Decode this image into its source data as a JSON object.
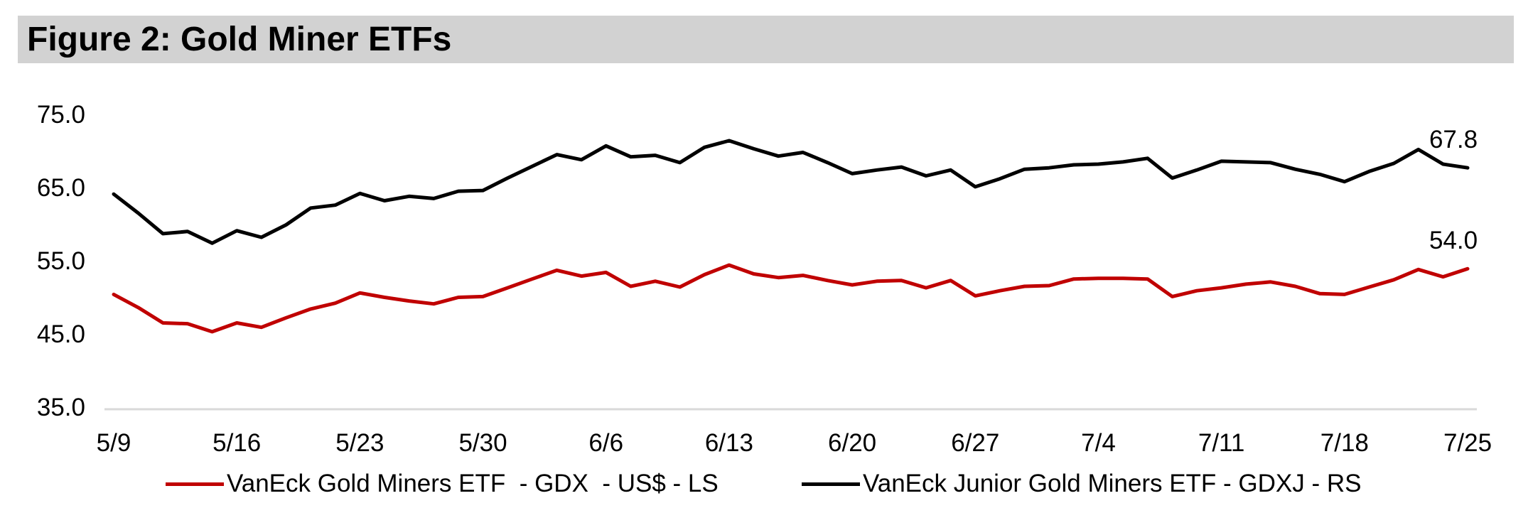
{
  "title": "Figure 2: Gold Miner ETFs",
  "colors": {
    "gdx_line": "#c00000",
    "gdxj_line": "#000000",
    "title_bar_bg": "#d2d2d2",
    "axis_line": "#d9d9d9",
    "text": "#000000"
  },
  "y_axis": {
    "ticks": [
      "75.0",
      "65.0",
      "55.0",
      "45.0",
      "35.0"
    ]
  },
  "x_axis": {
    "ticks": [
      "5/9",
      "5/16",
      "5/23",
      "5/30",
      "6/6",
      "6/13",
      "6/20",
      "6/27",
      "7/4",
      "7/11",
      "7/18",
      "7/25"
    ]
  },
  "end_labels": {
    "gdxj": "67.8",
    "gdx": "54.0"
  },
  "legend": [
    {
      "id": "gdx",
      "label": "VanEck Gold Miners ETF  - GDX  - US$ - LS",
      "color": "#c00000"
    },
    {
      "id": "gdxj",
      "label": "VanEck Junior Gold Miners ETF - GDXJ - RS",
      "color": "#000000"
    }
  ],
  "chart_data": {
    "type": "line",
    "title": "Figure 2: Gold Miner ETFs",
    "xlabel": "",
    "ylabel": "",
    "ylim": [
      35,
      75
    ],
    "y_tick_interval": 10,
    "grid": false,
    "legend_position": "bottom",
    "x": [
      "5/9",
      "5/12",
      "5/13",
      "5/14",
      "5/15",
      "5/16",
      "5/19",
      "5/20",
      "5/21",
      "5/22",
      "5/23",
      "5/26",
      "5/27",
      "5/28",
      "5/29",
      "5/30",
      "6/2",
      "6/3",
      "6/4",
      "6/5",
      "6/6",
      "6/9",
      "6/10",
      "6/11",
      "6/12",
      "6/13",
      "6/16",
      "6/17",
      "6/18",
      "6/19",
      "6/20",
      "6/23",
      "6/24",
      "6/25",
      "6/26",
      "6/27",
      "6/30",
      "7/1",
      "7/2",
      "7/3",
      "7/4",
      "7/7",
      "7/8",
      "7/9",
      "7/10",
      "7/11",
      "7/14",
      "7/15",
      "7/16",
      "7/17",
      "7/18",
      "7/21",
      "7/22",
      "7/23",
      "7/24",
      "7/25"
    ],
    "x_tick_every": 5,
    "series": [
      {
        "id": "gdx",
        "name": "VanEck Gold Miners ETF - GDX - US$ - LS",
        "color": "#c00000",
        "axis": "left",
        "end_label": 54.0,
        "values": [
          50.5,
          48.7,
          46.6,
          46.5,
          45.4,
          46.6,
          46.0,
          47.3,
          48.5,
          49.3,
          50.7,
          50.1,
          49.6,
          49.2,
          50.1,
          50.2,
          51.4,
          52.6,
          53.8,
          53.0,
          53.5,
          51.6,
          52.3,
          51.5,
          53.2,
          54.5,
          53.3,
          52.8,
          53.1,
          52.4,
          51.8,
          52.3,
          52.4,
          51.4,
          52.4,
          50.3,
          51.0,
          51.6,
          51.7,
          52.6,
          52.7,
          52.7,
          52.6,
          50.2,
          51.0,
          51.4,
          51.9,
          52.2,
          51.6,
          50.6,
          50.5,
          51.5,
          52.5,
          53.9,
          52.9,
          54.0
        ]
      },
      {
        "id": "gdxj",
        "name": "VanEck Junior Gold Miners ETF - GDXJ - RS",
        "color": "#000000",
        "axis": "right",
        "end_label": 67.8,
        "values": [
          64.2,
          61.6,
          58.8,
          59.1,
          57.5,
          59.2,
          58.3,
          60.0,
          62.3,
          62.7,
          64.3,
          63.3,
          63.9,
          63.6,
          64.6,
          64.7,
          66.4,
          68.0,
          69.6,
          68.9,
          70.8,
          69.3,
          69.5,
          68.5,
          70.6,
          71.5,
          70.4,
          69.4,
          69.9,
          68.5,
          67.0,
          67.5,
          67.9,
          66.7,
          67.5,
          65.2,
          66.3,
          67.6,
          67.8,
          68.2,
          68.3,
          68.6,
          69.1,
          66.4,
          67.5,
          68.7,
          68.6,
          68.5,
          67.6,
          66.9,
          65.9,
          67.3,
          68.4,
          70.3,
          68.3,
          67.8
        ]
      }
    ]
  }
}
